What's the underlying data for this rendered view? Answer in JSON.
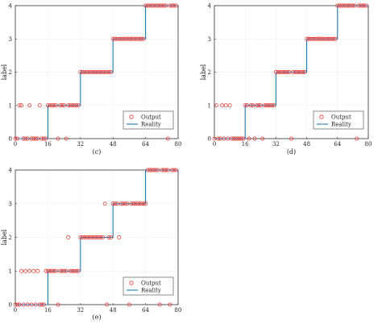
{
  "chart_data": [
    {
      "type": "line",
      "caption": "(c)",
      "ylabel": "label",
      "xlim": [
        0,
        80
      ],
      "ylim": [
        0,
        4
      ],
      "xticks": [
        0,
        16,
        32,
        48,
        64,
        80
      ],
      "yticks": [
        0,
        1,
        2,
        3,
        4
      ],
      "grid": true,
      "legend_position": "lower-right",
      "legend": [
        "Output",
        "Reality"
      ],
      "series": [
        {
          "name": "Reality",
          "kind": "line",
          "x": [
            0,
            16,
            16,
            32,
            32,
            48,
            48,
            64,
            64,
            80
          ],
          "y": [
            0,
            0,
            1,
            1,
            2,
            2,
            3,
            3,
            4,
            4
          ]
        },
        {
          "name": "Output",
          "kind": "scatter",
          "points": [
            [
              0,
              0
            ],
            [
              1,
              0
            ],
            [
              2,
              1
            ],
            [
              3,
              1
            ],
            [
              4,
              0
            ],
            [
              5,
              0
            ],
            [
              6,
              0
            ],
            [
              7,
              1
            ],
            [
              8,
              0
            ],
            [
              9,
              0
            ],
            [
              10,
              0
            ],
            [
              11,
              0
            ],
            [
              12,
              1
            ],
            [
              13,
              0
            ],
            [
              14,
              0
            ],
            [
              15,
              0
            ],
            [
              16,
              1
            ],
            [
              17,
              1
            ],
            [
              18,
              1
            ],
            [
              19,
              1
            ],
            [
              20,
              1
            ],
            [
              21,
              0
            ],
            [
              22,
              1
            ],
            [
              23,
              1
            ],
            [
              24,
              1
            ],
            [
              25,
              0
            ],
            [
              26,
              1
            ],
            [
              27,
              1
            ],
            [
              28,
              1
            ],
            [
              29,
              1
            ],
            [
              30,
              1
            ],
            [
              31,
              1
            ],
            [
              32,
              2
            ],
            [
              33,
              2
            ],
            [
              34,
              2
            ],
            [
              35,
              2
            ],
            [
              36,
              2
            ],
            [
              37,
              2
            ],
            [
              38,
              2
            ],
            [
              39,
              2
            ],
            [
              40,
              2
            ],
            [
              41,
              2
            ],
            [
              42,
              2
            ],
            [
              43,
              2
            ],
            [
              44,
              2
            ],
            [
              45,
              2
            ],
            [
              46,
              2
            ],
            [
              47,
              2
            ],
            [
              48,
              3
            ],
            [
              49,
              3
            ],
            [
              50,
              3
            ],
            [
              51,
              3
            ],
            [
              52,
              3
            ],
            [
              53,
              3
            ],
            [
              54,
              3
            ],
            [
              55,
              3
            ],
            [
              56,
              3
            ],
            [
              57,
              3
            ],
            [
              58,
              3
            ],
            [
              59,
              3
            ],
            [
              60,
              3
            ],
            [
              61,
              3
            ],
            [
              62,
              3
            ],
            [
              63,
              3
            ],
            [
              64,
              4
            ],
            [
              65,
              4
            ],
            [
              66,
              4
            ],
            [
              67,
              4
            ],
            [
              68,
              4
            ],
            [
              69,
              4
            ],
            [
              70,
              4
            ],
            [
              71,
              4
            ],
            [
              72,
              4
            ],
            [
              73,
              4
            ],
            [
              74,
              4
            ],
            [
              75,
              0
            ],
            [
              76,
              4
            ],
            [
              77,
              4
            ],
            [
              78,
              4
            ],
            [
              79,
              4
            ]
          ]
        }
      ],
      "colors": {
        "line": "#1f77b4",
        "marker": "#e8302a"
      }
    },
    {
      "type": "line",
      "caption": "(d)",
      "ylabel": "label",
      "xlim": [
        0,
        80
      ],
      "ylim": [
        0,
        4
      ],
      "xticks": [
        0,
        16,
        32,
        48,
        64,
        80
      ],
      "yticks": [
        0,
        1,
        2,
        3,
        4
      ],
      "grid": true,
      "legend_position": "lower-right",
      "legend": [
        "Output",
        "Reality"
      ],
      "series": [
        {
          "name": "Reality",
          "kind": "line",
          "x": [
            0,
            16,
            16,
            32,
            32,
            48,
            48,
            64,
            64,
            80
          ],
          "y": [
            0,
            0,
            1,
            1,
            2,
            2,
            3,
            3,
            4,
            4
          ]
        },
        {
          "name": "Output",
          "kind": "scatter",
          "points": [
            [
              0,
              0
            ],
            [
              1,
              1
            ],
            [
              2,
              0
            ],
            [
              3,
              0
            ],
            [
              4,
              1
            ],
            [
              5,
              0
            ],
            [
              6,
              1
            ],
            [
              7,
              0
            ],
            [
              8,
              1
            ],
            [
              9,
              0
            ],
            [
              10,
              0
            ],
            [
              11,
              0
            ],
            [
              12,
              0
            ],
            [
              13,
              0
            ],
            [
              14,
              0
            ],
            [
              15,
              0
            ],
            [
              16,
              1
            ],
            [
              17,
              1
            ],
            [
              18,
              0
            ],
            [
              19,
              1
            ],
            [
              20,
              1
            ],
            [
              21,
              0
            ],
            [
              22,
              1
            ],
            [
              23,
              1
            ],
            [
              24,
              1
            ],
            [
              25,
              0
            ],
            [
              26,
              1
            ],
            [
              27,
              1
            ],
            [
              28,
              1
            ],
            [
              29,
              1
            ],
            [
              30,
              1
            ],
            [
              31,
              1
            ],
            [
              32,
              2
            ],
            [
              33,
              2
            ],
            [
              34,
              2
            ],
            [
              35,
              2
            ],
            [
              36,
              2
            ],
            [
              37,
              2
            ],
            [
              38,
              2
            ],
            [
              39,
              2
            ],
            [
              40,
              0
            ],
            [
              41,
              2
            ],
            [
              42,
              2
            ],
            [
              43,
              2
            ],
            [
              44,
              2
            ],
            [
              45,
              2
            ],
            [
              46,
              2
            ],
            [
              47,
              2
            ],
            [
              48,
              3
            ],
            [
              49,
              3
            ],
            [
              50,
              3
            ],
            [
              51,
              3
            ],
            [
              52,
              3
            ],
            [
              53,
              3
            ],
            [
              54,
              3
            ],
            [
              55,
              3
            ],
            [
              56,
              3
            ],
            [
              57,
              3
            ],
            [
              58,
              3
            ],
            [
              59,
              3
            ],
            [
              60,
              3
            ],
            [
              61,
              3
            ],
            [
              62,
              3
            ],
            [
              63,
              3
            ],
            [
              64,
              4
            ],
            [
              65,
              4
            ],
            [
              66,
              4
            ],
            [
              67,
              4
            ],
            [
              68,
              4
            ],
            [
              69,
              4
            ],
            [
              70,
              4
            ],
            [
              71,
              4
            ],
            [
              72,
              4
            ],
            [
              73,
              4
            ],
            [
              74,
              0
            ],
            [
              75,
              4
            ],
            [
              76,
              4
            ],
            [
              77,
              4
            ],
            [
              78,
              4
            ],
            [
              79,
              4
            ]
          ]
        }
      ],
      "colors": {
        "line": "#1f77b4",
        "marker": "#e8302a"
      }
    },
    {
      "type": "line",
      "caption": "(e)",
      "ylabel": "label",
      "xlim": [
        0,
        80
      ],
      "ylim": [
        0,
        4
      ],
      "xticks": [
        0,
        16,
        32,
        48,
        64,
        80
      ],
      "yticks": [
        0,
        1,
        2,
        3,
        4
      ],
      "grid": true,
      "legend_position": "lower-right",
      "legend": [
        "Output",
        "Reality"
      ],
      "series": [
        {
          "name": "Reality",
          "kind": "line",
          "x": [
            0,
            16,
            16,
            32,
            32,
            48,
            48,
            64,
            64,
            80
          ],
          "y": [
            0,
            0,
            1,
            1,
            2,
            2,
            3,
            3,
            4,
            4
          ]
        },
        {
          "name": "Output",
          "kind": "scatter",
          "points": [
            [
              0,
              0
            ],
            [
              1,
              0
            ],
            [
              2,
              0
            ],
            [
              3,
              1
            ],
            [
              4,
              0
            ],
            [
              5,
              1
            ],
            [
              6,
              0
            ],
            [
              7,
              1
            ],
            [
              8,
              0
            ],
            [
              9,
              1
            ],
            [
              10,
              0
            ],
            [
              11,
              1
            ],
            [
              12,
              0
            ],
            [
              13,
              0
            ],
            [
              14,
              0
            ],
            [
              15,
              1
            ],
            [
              16,
              1
            ],
            [
              17,
              1
            ],
            [
              18,
              1
            ],
            [
              19,
              1
            ],
            [
              20,
              1
            ],
            [
              21,
              0
            ],
            [
              22,
              1
            ],
            [
              23,
              1
            ],
            [
              24,
              1
            ],
            [
              25,
              1
            ],
            [
              26,
              2
            ],
            [
              27,
              1
            ],
            [
              28,
              1
            ],
            [
              29,
              1
            ],
            [
              30,
              1
            ],
            [
              31,
              1
            ],
            [
              32,
              2
            ],
            [
              33,
              2
            ],
            [
              34,
              2
            ],
            [
              35,
              2
            ],
            [
              36,
              2
            ],
            [
              37,
              2
            ],
            [
              38,
              2
            ],
            [
              39,
              2
            ],
            [
              40,
              2
            ],
            [
              41,
              2
            ],
            [
              42,
              2
            ],
            [
              43,
              2
            ],
            [
              44,
              3
            ],
            [
              45,
              0
            ],
            [
              46,
              2
            ],
            [
              47,
              2
            ],
            [
              48,
              3
            ],
            [
              49,
              3
            ],
            [
              50,
              3
            ],
            [
              51,
              2
            ],
            [
              52,
              3
            ],
            [
              53,
              3
            ],
            [
              54,
              3
            ],
            [
              55,
              3
            ],
            [
              56,
              0
            ],
            [
              57,
              3
            ],
            [
              58,
              3
            ],
            [
              59,
              3
            ],
            [
              60,
              3
            ],
            [
              61,
              3
            ],
            [
              62,
              3
            ],
            [
              63,
              3
            ],
            [
              64,
              3
            ],
            [
              65,
              4
            ],
            [
              66,
              4
            ],
            [
              67,
              4
            ],
            [
              68,
              4
            ],
            [
              69,
              4
            ],
            [
              70,
              4
            ],
            [
              71,
              0
            ],
            [
              72,
              4
            ],
            [
              73,
              4
            ],
            [
              74,
              4
            ],
            [
              75,
              4
            ],
            [
              76,
              0
            ],
            [
              77,
              4
            ],
            [
              78,
              4
            ],
            [
              79,
              4
            ]
          ]
        }
      ],
      "colors": {
        "line": "#1f77b4",
        "marker": "#e8302a"
      }
    }
  ]
}
